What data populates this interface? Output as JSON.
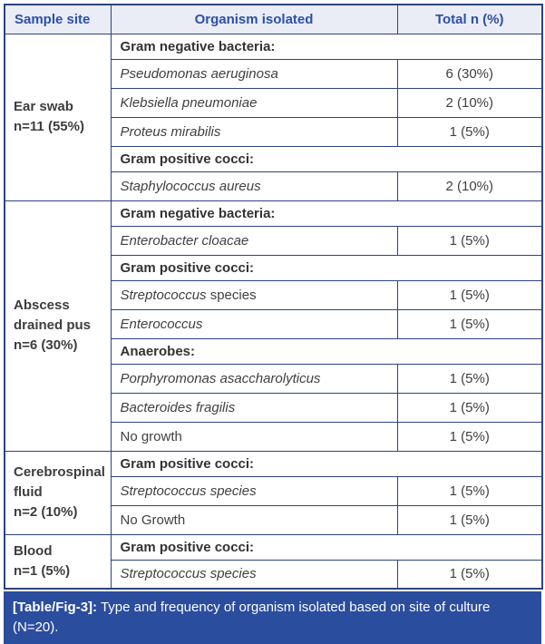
{
  "colors": {
    "border": "#2b4480",
    "header_bg": "#eaecf6",
    "header_fg": "#2d50a4",
    "body_fg": "#404040",
    "caption_bg": "#2b4d9e",
    "caption_fg": "#ffffff"
  },
  "table": {
    "headers": [
      "Sample site",
      "Organism isolated",
      "Total n (%)"
    ],
    "groups": [
      {
        "site_lines": [
          "Ear swab",
          "n=11 (55%)"
        ],
        "rows": [
          {
            "type": "section",
            "label": "Gram negative bacteria:"
          },
          {
            "type": "organism",
            "italic": "Pseudomonas aeruginosa",
            "regular": "",
            "total": "6 (30%)"
          },
          {
            "type": "organism",
            "italic": "Klebsiella pneumoniae",
            "regular": "",
            "total": "2 (10%)"
          },
          {
            "type": "organism",
            "italic": "Proteus mirabilis",
            "regular": "",
            "total": "1 (5%)"
          },
          {
            "type": "section",
            "label": "Gram positive cocci:"
          },
          {
            "type": "organism",
            "italic": "Staphylococcus aureus",
            "regular": "",
            "total": "2 (10%)"
          }
        ]
      },
      {
        "site_lines": [
          "Abscess",
          "drained pus",
          "n=6 (30%)"
        ],
        "rows": [
          {
            "type": "section",
            "label": "Gram negative bacteria:"
          },
          {
            "type": "organism",
            "italic": "Enterobacter cloacae",
            "regular": "",
            "total": "1 (5%)"
          },
          {
            "type": "section",
            "label": "Gram positive cocci:"
          },
          {
            "type": "organism",
            "italic": "Streptococcus",
            "regular": " species",
            "total": "1 (5%)"
          },
          {
            "type": "organism",
            "italic": "Enterococcus",
            "regular": "",
            "total": "1 (5%)"
          },
          {
            "type": "section",
            "label": "Anaerobes:"
          },
          {
            "type": "organism",
            "italic": "Porphyromonas asaccharolyticus",
            "regular": "",
            "total": "1 (5%)"
          },
          {
            "type": "organism",
            "italic": "Bacteroides fragilis",
            "regular": "",
            "total": "1 (5%)"
          },
          {
            "type": "organism",
            "italic": "",
            "regular": "No growth",
            "total": "1 (5%)"
          }
        ]
      },
      {
        "site_lines": [
          "Cerebrospinal",
          "fluid",
          "n=2 (10%)"
        ],
        "rows": [
          {
            "type": "section",
            "label": "Gram positive cocci:"
          },
          {
            "type": "organism",
            "italic": "Streptococcus species",
            "regular": "",
            "total": "1 (5%)"
          },
          {
            "type": "organism",
            "italic": "",
            "regular": "No Growth",
            "total": "1 (5%)"
          }
        ]
      },
      {
        "site_lines": [
          "Blood",
          "n=1 (5%)"
        ],
        "rows": [
          {
            "type": "section",
            "label": "Gram positive cocci:"
          },
          {
            "type": "organism",
            "italic": "Streptococcus species",
            "regular": "",
            "total": "1 (5%)"
          }
        ]
      }
    ]
  },
  "caption": {
    "tag": "[Table/Fig-3]:",
    "text": " Type and frequency of organism isolated based on site of culture (N=20)."
  }
}
